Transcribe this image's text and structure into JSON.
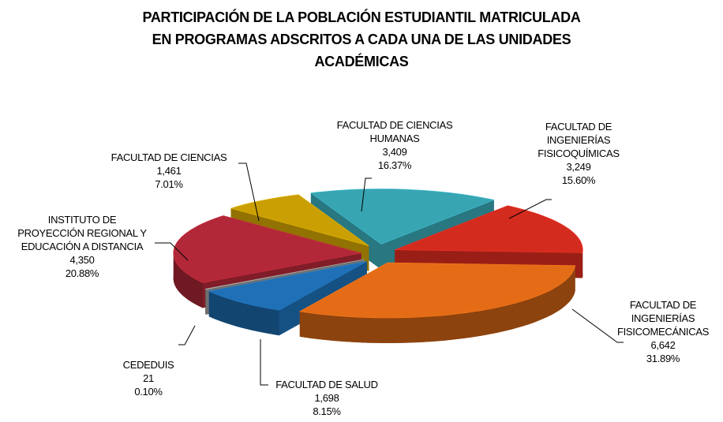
{
  "chart_data": {
    "type": "pie3d",
    "title": "PARTICIPACIÓN DE LA POBLACIÓN ESTUDIANTIL MATRICULADA\nEN PROGRAMAS ADSCRITOS A CADA UNA DE LAS UNIDADES\nACADÉMICAS",
    "categories": [
      "FACULTAD DE CIENCIAS\nHUMANAS",
      "FACULTAD DE\nINGENIERÍAS\nFISICOQUÍMICAS",
      "FACULTAD DE\nINGENIERÍAS\nFISICOMECÁNICAS",
      "FACULTAD DE SALUD",
      "CEDEDUIS",
      "INSTITUTO DE\nPROYECCIÓN REGIONAL Y\nEDUCACIÓN A DISTANCIA",
      "FACULTAD DE CIENCIAS"
    ],
    "values": [
      3409,
      3249,
      6642,
      1698,
      21,
      4350,
      1461
    ],
    "value_labels": [
      "3,409",
      "3,249",
      "6,642",
      "1,698",
      "21",
      "4,350",
      "1,461"
    ],
    "percentages": [
      {
        "value": 16.37,
        "label": "16.37%"
      },
      {
        "value": 15.6,
        "label": "15.60%"
      },
      {
        "value": 31.89,
        "label": "31.89%"
      },
      {
        "value": 8.15,
        "label": "8.15%"
      },
      {
        "value": 0.1,
        "label": "0.10%"
      },
      {
        "value": 20.88,
        "label": "20.88%"
      },
      {
        "value": 7.01,
        "label": "7.01%"
      }
    ],
    "colors": [
      "#38a5b3",
      "#d42b1f",
      "#e46c17",
      "#1f70b6",
      "#9b9b9b",
      "#b22838",
      "#c99f03"
    ]
  }
}
